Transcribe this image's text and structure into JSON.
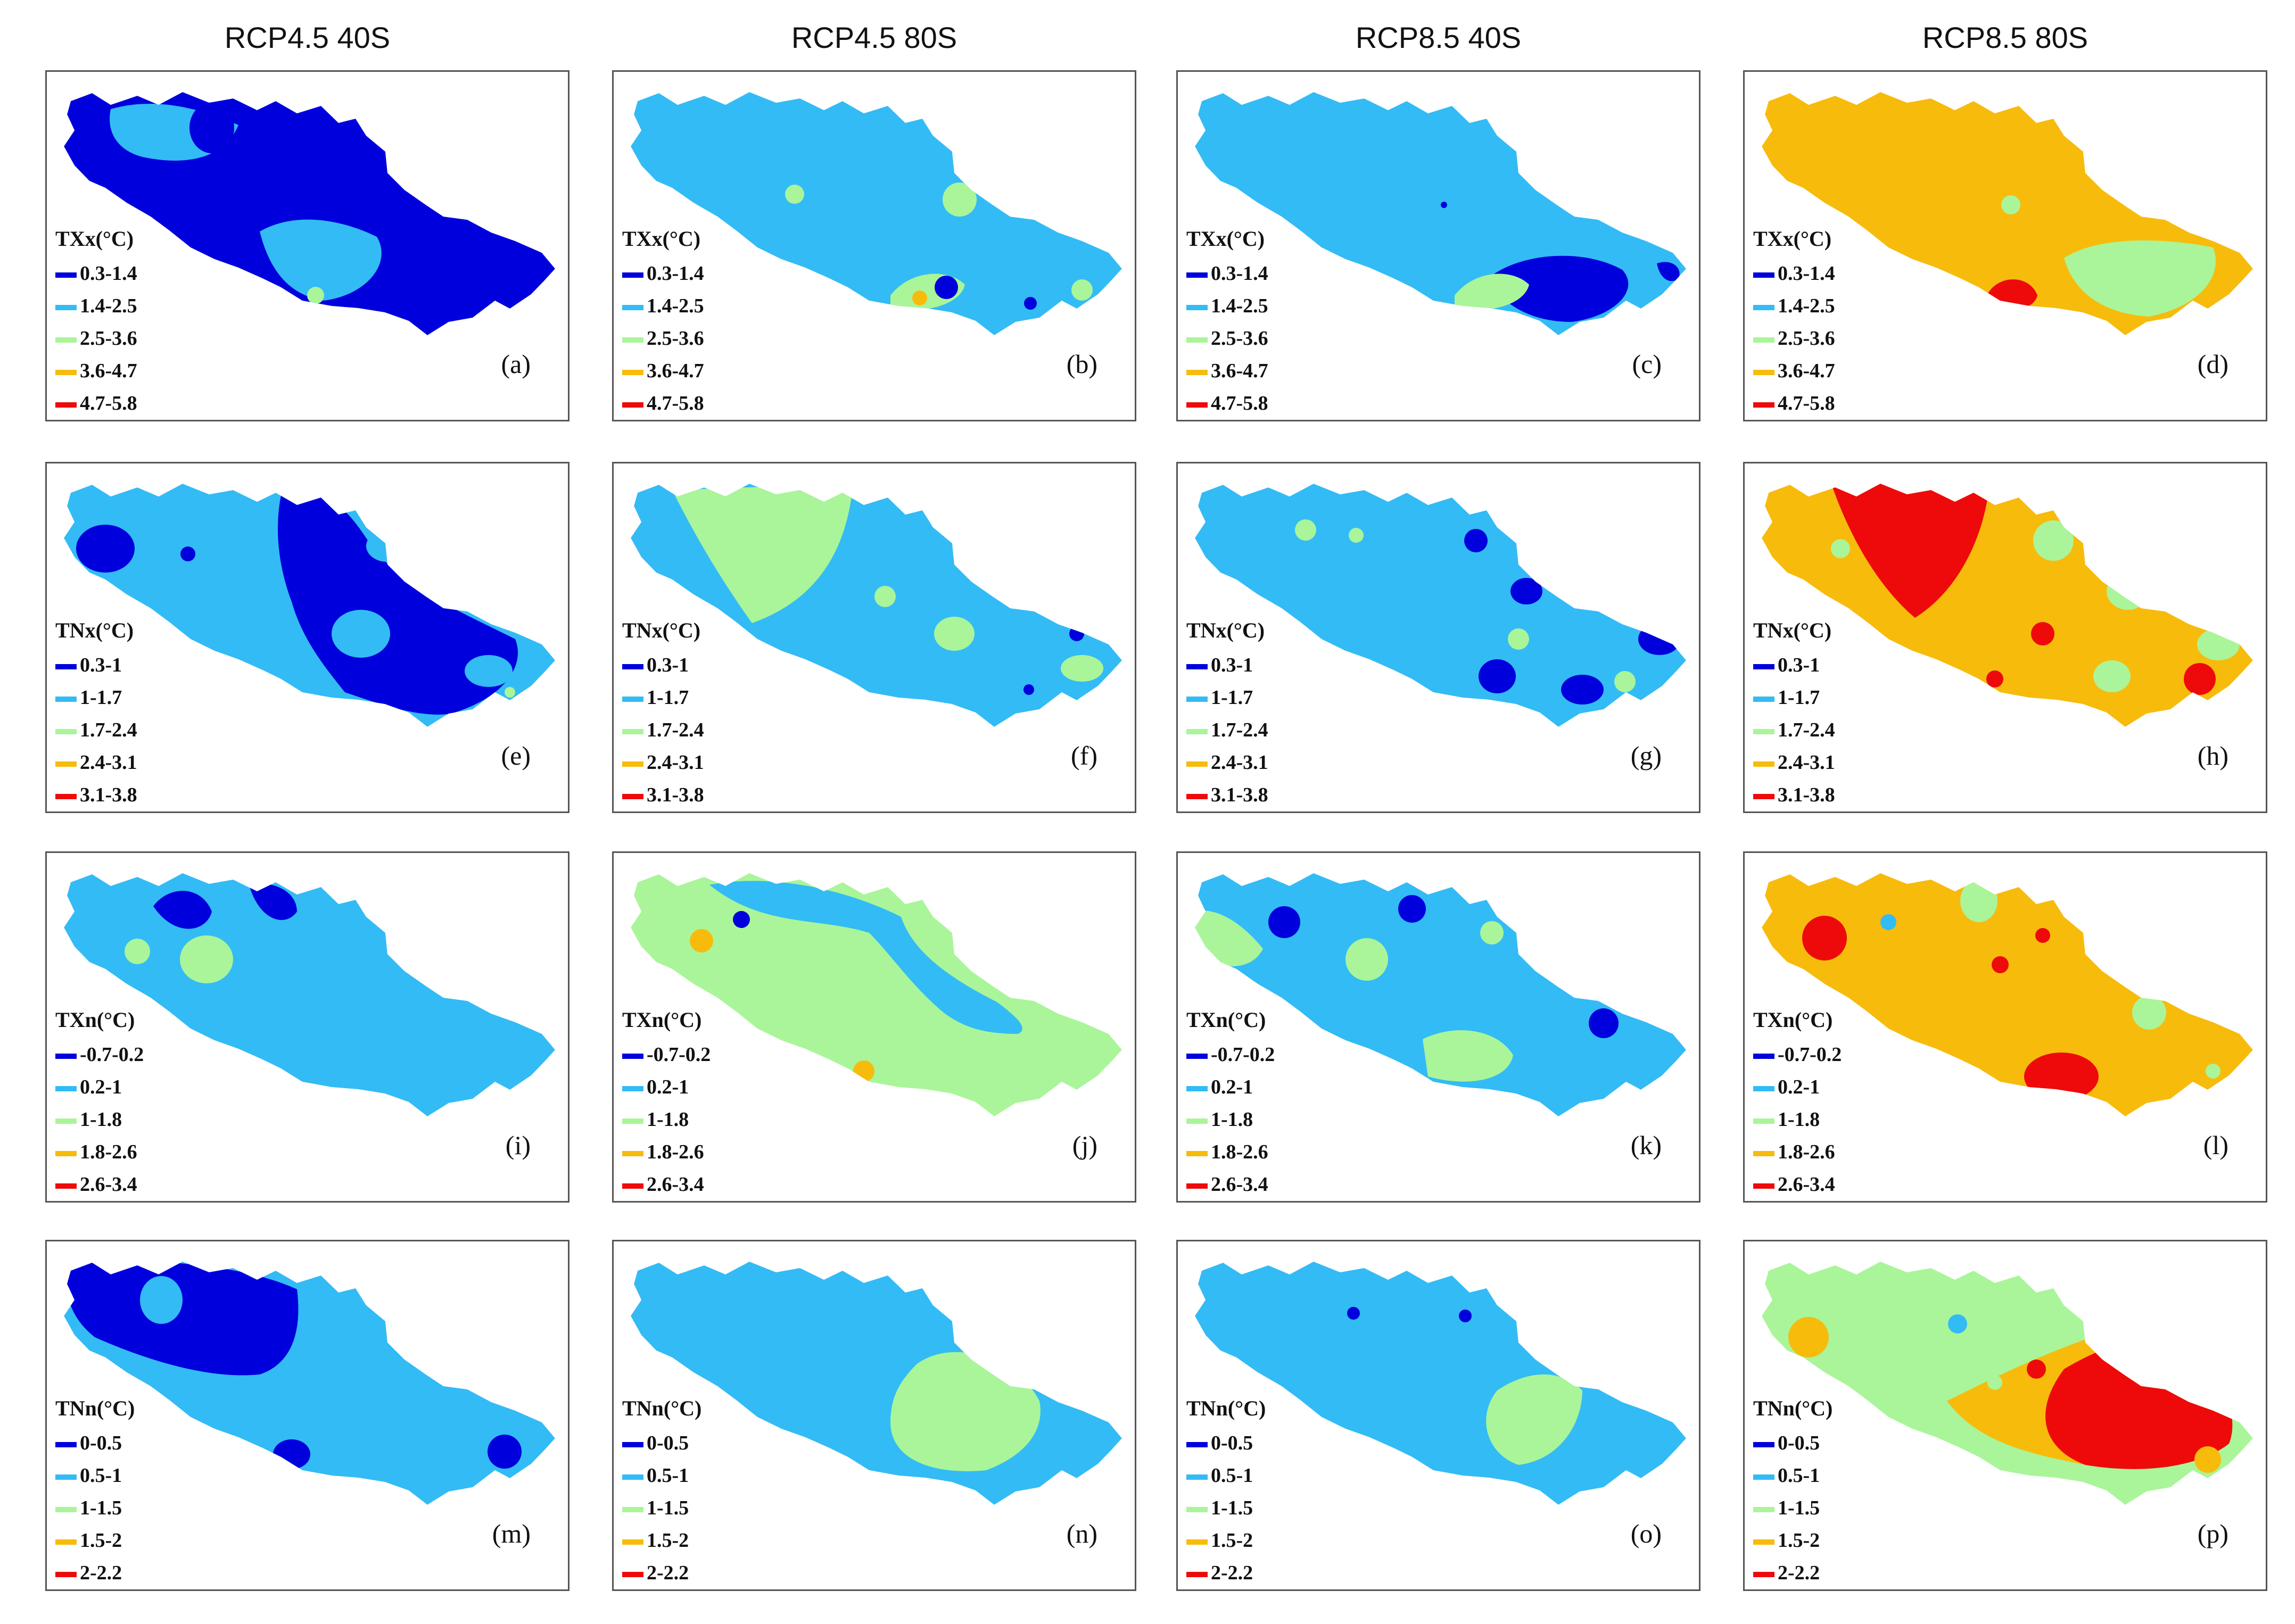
{
  "column_headers": [
    "RCP4.5 40S",
    "RCP4.5 80S",
    "RCP8.5 40S",
    "RCP8.5 80S"
  ],
  "colors": {
    "c1": "#0000dd",
    "c2": "#33bbf5",
    "c3": "#aaf599",
    "c4": "#f7bb0c",
    "c5": "#ee0a0a"
  },
  "rows": [
    {
      "title": "TXx(°C)",
      "classes": [
        "0.3-1.4",
        "1.4-2.5",
        "2.5-3.6",
        "3.6-4.7",
        "4.7-5.8"
      ]
    },
    {
      "title": "TNx(°C)",
      "classes": [
        "0.3-1",
        "1-1.7",
        "1.7-2.4",
        "2.4-3.1",
        "3.1-3.8"
      ]
    },
    {
      "title": "TXn(°C)",
      "classes": [
        "-0.7-0.2",
        "0.2-1",
        "1-1.8",
        "1.8-2.6",
        "2.6-3.4"
      ]
    },
    {
      "title": "TNn(°C)",
      "classes": [
        "0-0.5",
        "0.5-1",
        "1-1.5",
        "1.5-2",
        "2-2.2"
      ]
    }
  ],
  "panels": [
    {
      "letter": "(a)",
      "base": "c1",
      "patches": [
        [
          "c2",
          "c2-west"
        ],
        [
          "c1",
          "c1-blob"
        ],
        [
          "c2",
          "c2-mid"
        ],
        [
          "c3",
          "c3-dot"
        ]
      ]
    },
    {
      "letter": "(b)",
      "base": "c2",
      "patches": [
        [
          "c3",
          "c3-dots"
        ],
        [
          "c3",
          "c3-south"
        ],
        [
          "c4",
          "c4-dot"
        ],
        [
          "c1",
          "c1-dots"
        ]
      ]
    },
    {
      "letter": "(c)",
      "base": "c2",
      "patches": [
        [
          "c1",
          "c1-southeast"
        ],
        [
          "c3",
          "c3-south"
        ],
        [
          "c1",
          "c1-dots"
        ]
      ]
    },
    {
      "letter": "(d)",
      "base": "c4",
      "patches": [
        [
          "c3",
          "c3-east"
        ],
        [
          "c5",
          "c5-south"
        ],
        [
          "c3",
          "c3-dots"
        ]
      ]
    },
    {
      "letter": "(e)",
      "base": "c2",
      "patches": [
        [
          "c1",
          "c1-band"
        ],
        [
          "c1",
          "c1-west"
        ],
        [
          "c2",
          "c2-holes"
        ],
        [
          "c3",
          "c3-dot"
        ]
      ]
    },
    {
      "letter": "(f)",
      "base": "c2",
      "patches": [
        [
          "c3",
          "c3-wedge"
        ],
        [
          "c3",
          "c3-dots"
        ],
        [
          "c1",
          "c1-dots"
        ]
      ]
    },
    {
      "letter": "(g)",
      "base": "c2",
      "patches": [
        [
          "c1",
          "c1-dots"
        ],
        [
          "c3",
          "c3-dots"
        ]
      ]
    },
    {
      "letter": "(h)",
      "base": "c4",
      "patches": [
        [
          "c5",
          "c5-wedge"
        ],
        [
          "c3",
          "c3-dots"
        ],
        [
          "c5",
          "c5-dots"
        ]
      ]
    },
    {
      "letter": "(i)",
      "base": "c2",
      "patches": [
        [
          "c1",
          "c1-north"
        ],
        [
          "c3",
          "c3-dots"
        ]
      ]
    },
    {
      "letter": "(j)",
      "base": "c3",
      "patches": [
        [
          "c2",
          "c2-northeast"
        ],
        [
          "c1",
          "c1-dots"
        ],
        [
          "c4",
          "c4-dots"
        ]
      ]
    },
    {
      "letter": "(k)",
      "base": "c2",
      "patches": [
        [
          "c3",
          "c3-west"
        ],
        [
          "c1",
          "c1-dots"
        ],
        [
          "c3",
          "c3-dots"
        ]
      ]
    },
    {
      "letter": "(l)",
      "base": "c4",
      "patches": [
        [
          "c5",
          "c5-dots"
        ],
        [
          "c3",
          "c3-dots"
        ],
        [
          "c2",
          "c2-dot"
        ]
      ]
    },
    {
      "letter": "(m)",
      "base": "c2",
      "patches": [
        [
          "c1",
          "c1-north"
        ],
        [
          "c2",
          "c2-dot"
        ],
        [
          "c1",
          "c1-south"
        ]
      ]
    },
    {
      "letter": "(n)",
      "base": "c2",
      "patches": [
        [
          "c3",
          "c3-southeast"
        ],
        [
          "c2",
          "c2-corner"
        ]
      ]
    },
    {
      "letter": "(o)",
      "base": "c2",
      "patches": [
        [
          "c3",
          "c3-south"
        ],
        [
          "c1",
          "c1-dots"
        ]
      ]
    },
    {
      "letter": "(p)",
      "base": "c3",
      "patches": [
        [
          "c4",
          "c4-east"
        ],
        [
          "c5",
          "c5-southeast"
        ],
        [
          "c4",
          "c4-dots"
        ],
        [
          "c2",
          "c2-dot"
        ],
        [
          "c5",
          "c5-dot"
        ],
        [
          "c3",
          "c3-dot"
        ]
      ]
    }
  ]
}
